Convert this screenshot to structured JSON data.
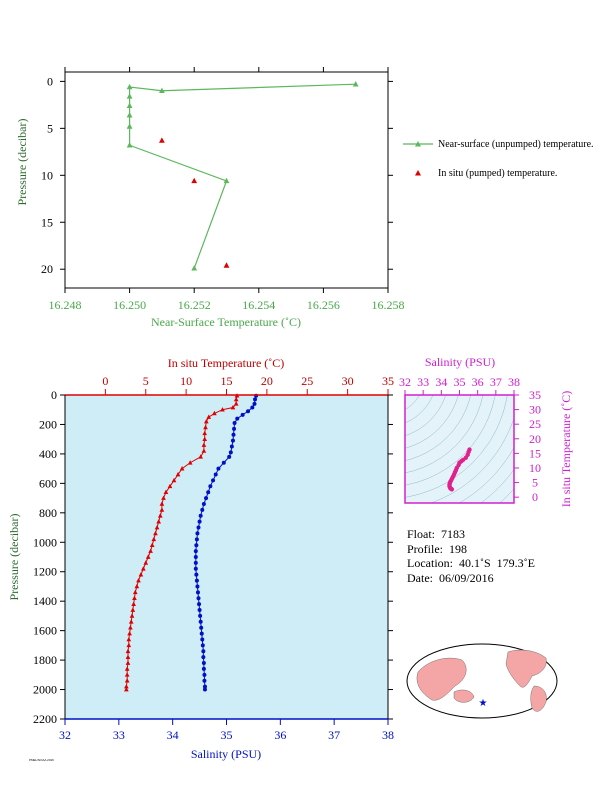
{
  "chart_data": [
    {
      "type": "line",
      "xlabel": "Near-Surface Temperature (˚C)",
      "ylabel": "Pressure (decibar)",
      "xlim": [
        16.248,
        16.258
      ],
      "ylim": [
        22,
        -1
      ],
      "x_ticks": [
        "16.248",
        "16.250",
        "16.252",
        "16.254",
        "16.256",
        "16.258"
      ],
      "y_ticks": [
        "0",
        "5",
        "10",
        "15",
        "20"
      ],
      "series": [
        {
          "name": "Near-surface (unpumped) temperature.",
          "color": "#5cb85c",
          "marker": "triangle",
          "points": [
            [
              16.257,
              0.3
            ],
            [
              16.251,
              1.0
            ],
            [
              16.25,
              0.6
            ],
            [
              16.25,
              1.6
            ],
            [
              16.25,
              2.6
            ],
            [
              16.25,
              3.6
            ],
            [
              16.25,
              4.8
            ],
            [
              16.25,
              6.8
            ],
            [
              16.253,
              10.6
            ],
            [
              16.252,
              19.9
            ]
          ]
        },
        {
          "name": "In situ (pumped) temperature.",
          "color": "#e00000",
          "marker": "triangle",
          "points": [
            [
              16.251,
              6.3
            ],
            [
              16.252,
              10.6
            ],
            [
              16.253,
              19.6
            ]
          ]
        }
      ]
    },
    {
      "type": "scatter",
      "x_top_label": "In situ Temperature (˚C)",
      "xlabel": "Salinity (PSU)",
      "ylabel": "Pressure (decibar)",
      "temp_lim": [
        -5,
        35
      ],
      "sal_lim": [
        32,
        38
      ],
      "ylim": [
        2200,
        0
      ],
      "temp_ticks": [
        "0",
        "5",
        "10",
        "15",
        "20",
        "25",
        "30",
        "35"
      ],
      "sal_ticks": [
        "32",
        "33",
        "34",
        "35",
        "36",
        "37",
        "38"
      ],
      "y_ticks": [
        "0",
        "200",
        "400",
        "600",
        "800",
        "1000",
        "1200",
        "1400",
        "1600",
        "1800",
        "2000",
        "2200"
      ],
      "temperature": {
        "color": "#e00000",
        "points": [
          [
            16.3,
            5
          ],
          [
            16.2,
            30
          ],
          [
            16.2,
            60
          ],
          [
            15.8,
            85
          ],
          [
            14.5,
            100
          ],
          [
            13.5,
            125
          ],
          [
            12.8,
            150
          ],
          [
            12.5,
            180
          ],
          [
            12.4,
            220
          ],
          [
            12.3,
            260
          ],
          [
            12.3,
            300
          ],
          [
            12.2,
            340
          ],
          [
            12.2,
            380
          ],
          [
            11.8,
            420
          ],
          [
            10.5,
            460
          ],
          [
            9.5,
            500
          ],
          [
            9.0,
            540
          ],
          [
            8.5,
            580
          ],
          [
            8.0,
            620
          ],
          [
            7.5,
            660
          ],
          [
            7.2,
            700
          ],
          [
            7.0,
            740
          ],
          [
            7.0,
            780
          ],
          [
            6.8,
            820
          ],
          [
            6.6,
            860
          ],
          [
            6.4,
            900
          ],
          [
            6.2,
            940
          ],
          [
            6.0,
            980
          ],
          [
            5.8,
            1020
          ],
          [
            5.6,
            1060
          ],
          [
            5.3,
            1100
          ],
          [
            5.0,
            1140
          ],
          [
            4.7,
            1180
          ],
          [
            4.4,
            1220
          ],
          [
            4.1,
            1260
          ],
          [
            3.9,
            1300
          ],
          [
            3.7,
            1340
          ],
          [
            3.6,
            1380
          ],
          [
            3.5,
            1420
          ],
          [
            3.4,
            1460
          ],
          [
            3.3,
            1500
          ],
          [
            3.2,
            1540
          ],
          [
            3.1,
            1580
          ],
          [
            3.0,
            1620
          ],
          [
            2.9,
            1660
          ],
          [
            2.9,
            1700
          ],
          [
            2.8,
            1740
          ],
          [
            2.8,
            1780
          ],
          [
            2.8,
            1820
          ],
          [
            2.7,
            1860
          ],
          [
            2.7,
            1900
          ],
          [
            2.7,
            1940
          ],
          [
            2.6,
            1980
          ],
          [
            2.6,
            2000
          ]
        ]
      },
      "salinity": {
        "color": "#0010c8",
        "points": [
          [
            35.55,
            5
          ],
          [
            35.53,
            30
          ],
          [
            35.52,
            60
          ],
          [
            35.48,
            85
          ],
          [
            35.4,
            110
          ],
          [
            35.3,
            135
          ],
          [
            35.2,
            160
          ],
          [
            35.15,
            190
          ],
          [
            35.14,
            230
          ],
          [
            35.13,
            270
          ],
          [
            35.12,
            310
          ],
          [
            35.1,
            350
          ],
          [
            35.08,
            390
          ],
          [
            35.05,
            420
          ],
          [
            34.95,
            460
          ],
          [
            34.85,
            500
          ],
          [
            34.8,
            540
          ],
          [
            34.75,
            580
          ],
          [
            34.7,
            620
          ],
          [
            34.66,
            660
          ],
          [
            34.62,
            700
          ],
          [
            34.58,
            740
          ],
          [
            34.55,
            780
          ],
          [
            34.52,
            820
          ],
          [
            34.5,
            860
          ],
          [
            34.48,
            900
          ],
          [
            34.46,
            940
          ],
          [
            34.45,
            980
          ],
          [
            34.44,
            1020
          ],
          [
            34.43,
            1060
          ],
          [
            34.43,
            1100
          ],
          [
            34.43,
            1140
          ],
          [
            34.43,
            1180
          ],
          [
            34.44,
            1220
          ],
          [
            34.45,
            1260
          ],
          [
            34.46,
            1300
          ],
          [
            34.47,
            1340
          ],
          [
            34.48,
            1380
          ],
          [
            34.49,
            1420
          ],
          [
            34.5,
            1460
          ],
          [
            34.51,
            1500
          ],
          [
            34.52,
            1540
          ],
          [
            34.53,
            1580
          ],
          [
            34.54,
            1620
          ],
          [
            34.55,
            1660
          ],
          [
            34.56,
            1700
          ],
          [
            34.57,
            1740
          ],
          [
            34.57,
            1780
          ],
          [
            34.58,
            1820
          ],
          [
            34.58,
            1860
          ],
          [
            34.59,
            1900
          ],
          [
            34.59,
            1940
          ],
          [
            34.6,
            1980
          ],
          [
            34.6,
            2000
          ]
        ]
      }
    },
    {
      "type": "scatter",
      "xlabel": "Salinity (PSU)",
      "ylabel": "In situ Temperature (˚C)",
      "xlim": [
        32,
        38
      ],
      "ylim": [
        -2,
        35
      ],
      "x_ticks": [
        "32",
        "33",
        "34",
        "35",
        "36",
        "37",
        "38"
      ],
      "y_ticks": [
        "0",
        "5",
        "10",
        "15",
        "20",
        "25",
        "30",
        "35"
      ],
      "points": [
        [
          35.55,
          16.3
        ],
        [
          35.5,
          15.5
        ],
        [
          35.45,
          14.5
        ],
        [
          35.35,
          13.5
        ],
        [
          35.2,
          12.8
        ],
        [
          35.1,
          12.3
        ],
        [
          35.0,
          11.8
        ],
        [
          34.95,
          11.0
        ],
        [
          34.85,
          10.0
        ],
        [
          34.8,
          9.2
        ],
        [
          34.75,
          8.5
        ],
        [
          34.7,
          7.8
        ],
        [
          34.65,
          7.1
        ],
        [
          34.6,
          6.5
        ],
        [
          34.55,
          5.9
        ],
        [
          34.5,
          5.3
        ],
        [
          34.47,
          4.8
        ],
        [
          34.45,
          4.3
        ],
        [
          34.45,
          3.8
        ],
        [
          34.47,
          3.4
        ],
        [
          34.5,
          3.0
        ],
        [
          34.55,
          2.8
        ],
        [
          34.58,
          2.7
        ]
      ]
    }
  ],
  "info": {
    "float": "Float:  7183",
    "profile": "Profile:  198",
    "location": "Location:  40.1˚S  179.3˚E",
    "date": "Date:  06/09/2016"
  },
  "footer": "PMEL/NOAA 2016"
}
